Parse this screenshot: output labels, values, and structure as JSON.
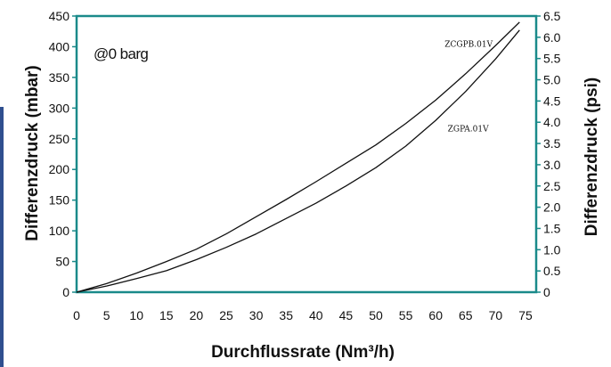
{
  "chart_data": {
    "type": "line",
    "title": "",
    "annotation": "@0 barg",
    "xlabel": "Durchflussrate (Nm³/h)",
    "ylabel": "Differenzdruck (mbar)",
    "y2label": "Differenzdruck (psi)",
    "xlim": [
      0,
      75
    ],
    "ylim": [
      0,
      450
    ],
    "y2lim": [
      0,
      6.5
    ],
    "xticks": [
      "0",
      "5",
      "10",
      "15",
      "20",
      "25",
      "30",
      "35",
      "40",
      "45",
      "50",
      "55",
      "60",
      "65",
      "70",
      "75"
    ],
    "yticks": [
      "0",
      "50",
      "100",
      "150",
      "200",
      "250",
      "300",
      "350",
      "400",
      "450"
    ],
    "y2ticks": [
      "0",
      "0.5",
      "1.0",
      "1.5",
      "2.0",
      "2.5",
      "3.0",
      "3.5",
      "4.0",
      "4.5",
      "5.0",
      "5.5",
      "6.0",
      "6.5"
    ],
    "grid": false,
    "axis_color": "#1a8a8a",
    "series": [
      {
        "name": "ZCGPB.01V",
        "x": [
          0,
          5,
          10,
          15,
          20,
          25,
          30,
          35,
          40,
          45,
          50,
          55,
          60,
          65,
          70,
          74
        ],
        "y": [
          0,
          14,
          31,
          50,
          70,
          95,
          123,
          151,
          180,
          210,
          240,
          275,
          313,
          356,
          402,
          440
        ]
      },
      {
        "name": "ZGPA.01V",
        "x": [
          0,
          5,
          10,
          15,
          20,
          25,
          30,
          35,
          40,
          45,
          50,
          55,
          60,
          65,
          70,
          74
        ],
        "y": [
          0,
          10,
          22,
          35,
          53,
          73,
          95,
          120,
          145,
          173,
          203,
          238,
          280,
          327,
          380,
          427
        ]
      }
    ]
  }
}
